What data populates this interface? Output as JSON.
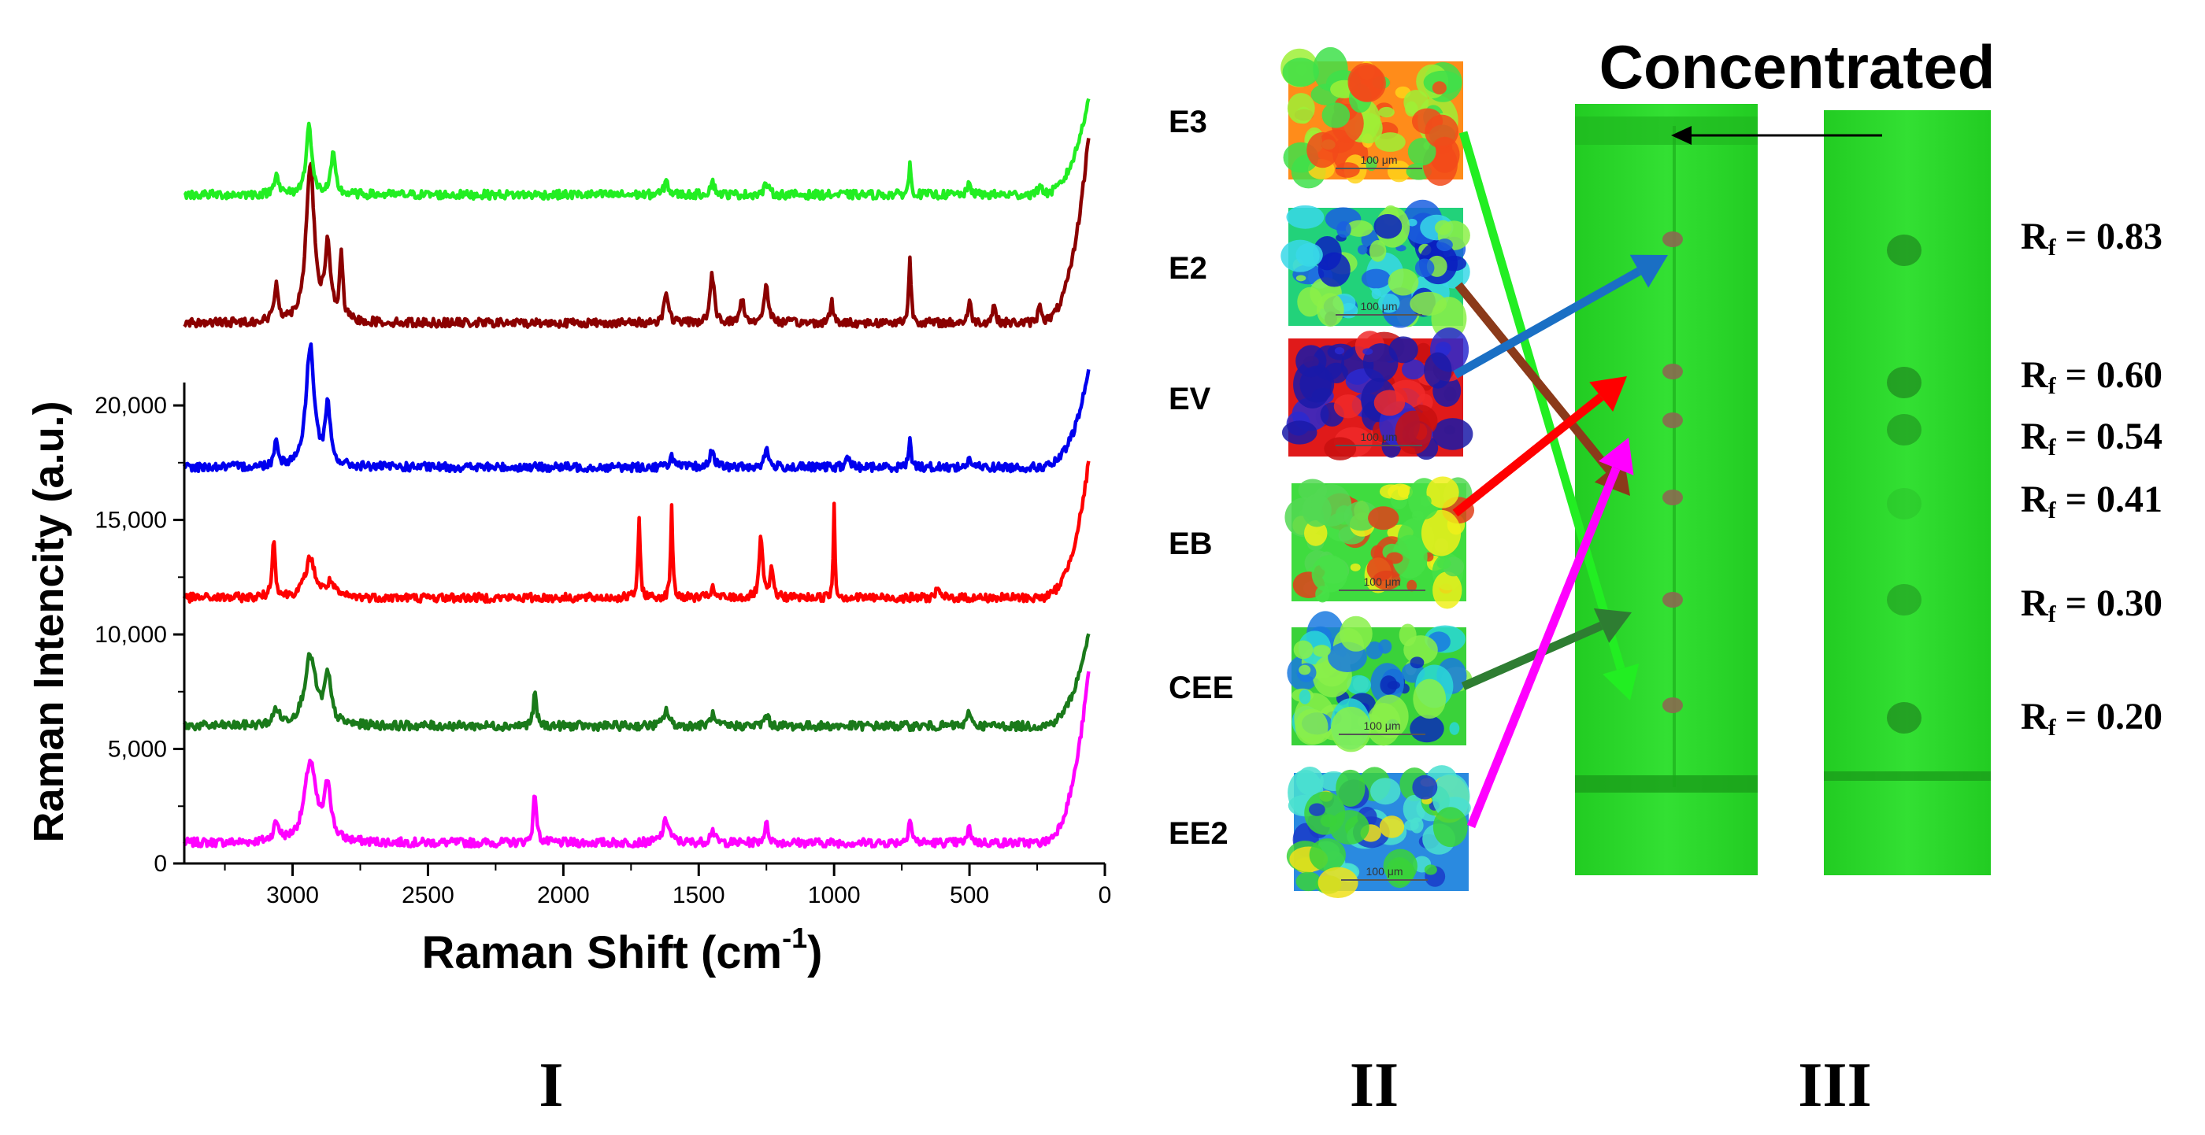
{
  "chart_data": {
    "type": "line",
    "panel_label": "I",
    "xlabel": "Raman Shift (cm",
    "xlabel_sup": "-1",
    "xlabel_close": ")",
    "ylabel": "Raman Intencity (a.u.)",
    "xlim": [
      3400,
      0
    ],
    "ylim": [
      0,
      21000
    ],
    "x_ticks": [
      3000,
      2500,
      2000,
      1500,
      1000,
      500,
      0
    ],
    "x_tick_labels": [
      "3000",
      "2500",
      "2000",
      "1500",
      "1000",
      "500",
      "0"
    ],
    "y_ticks": [
      0,
      5000,
      10000,
      15000,
      20000
    ],
    "y_tick_labels": [
      "0",
      "5,000",
      "10,000",
      "15,000",
      "20,000"
    ],
    "series": [
      {
        "name": "EE2",
        "color": "#ff00ff",
        "baseline": 900,
        "end_value": 8400,
        "peaks": [
          [
            3060,
            800,
            12
          ],
          [
            2935,
            3500,
            25
          ],
          [
            2870,
            2400,
            14
          ],
          [
            2105,
            2200,
            7
          ],
          [
            1620,
            1000,
            14
          ],
          [
            1450,
            600,
            9
          ],
          [
            1250,
            800,
            9
          ],
          [
            720,
            1100,
            7
          ],
          [
            500,
            700,
            7
          ]
        ]
      },
      {
        "name": "CEE",
        "color": "#1a7a1a",
        "baseline": 6000,
        "end_value": 10100,
        "peaks": [
          [
            3060,
            700,
            12
          ],
          [
            2935,
            3000,
            25
          ],
          [
            2870,
            2000,
            14
          ],
          [
            2105,
            1400,
            7
          ],
          [
            1620,
            700,
            11
          ],
          [
            1450,
            500,
            9
          ],
          [
            1250,
            500,
            9
          ],
          [
            500,
            700,
            7
          ]
        ]
      },
      {
        "name": "EB",
        "color": "#ff0000",
        "baseline": 11600,
        "end_value": 17500,
        "peaks": [
          [
            3070,
            2500,
            7
          ],
          [
            2935,
            1700,
            22
          ],
          [
            2860,
            600,
            16
          ],
          [
            1720,
            3300,
            5
          ],
          [
            1600,
            4200,
            4
          ],
          [
            1450,
            400,
            8
          ],
          [
            1270,
            2700,
            7
          ],
          [
            1230,
            1200,
            7
          ],
          [
            1000,
            4100,
            3.5
          ],
          [
            620,
            500,
            6
          ]
        ]
      },
      {
        "name": "EV",
        "color": "#0000ee",
        "baseline": 17300,
        "end_value": 21500,
        "peaks": [
          [
            3060,
            1200,
            8
          ],
          [
            2935,
            5300,
            18
          ],
          [
            2870,
            2500,
            11
          ],
          [
            1600,
            500,
            9
          ],
          [
            1450,
            800,
            9
          ],
          [
            1250,
            800,
            9
          ],
          [
            950,
            500,
            7
          ],
          [
            720,
            1400,
            5
          ],
          [
            500,
            400,
            7
          ]
        ]
      },
      {
        "name": "E2",
        "color": "#8b0000",
        "baseline": 23600,
        "end_value": 31800,
        "peaks": [
          [
            3060,
            1600,
            9
          ],
          [
            2935,
            6900,
            18
          ],
          [
            2870,
            3200,
            12
          ],
          [
            2820,
            2800,
            7
          ],
          [
            1620,
            1400,
            9
          ],
          [
            1450,
            2100,
            9
          ],
          [
            1340,
            1000,
            9
          ],
          [
            1250,
            1700,
            9
          ],
          [
            1010,
            1000,
            6
          ],
          [
            720,
            2900,
            5
          ],
          [
            500,
            900,
            7
          ],
          [
            410,
            900,
            6
          ],
          [
            240,
            900,
            7
          ]
        ]
      },
      {
        "name": "E3",
        "color": "#22ee22",
        "baseline": 29200,
        "end_value": 33500,
        "peaks": [
          [
            3060,
            1000,
            9
          ],
          [
            2940,
            3100,
            12
          ],
          [
            2850,
            1700,
            10
          ],
          [
            1620,
            600,
            9
          ],
          [
            1450,
            600,
            9
          ],
          [
            1250,
            500,
            9
          ],
          [
            720,
            1300,
            5
          ],
          [
            500,
            500,
            7
          ],
          [
            240,
            500,
            7
          ]
        ]
      }
    ]
  },
  "panel2": {
    "label": "II",
    "scale_text": "100 μm",
    "maps": [
      {
        "name": "E3",
        "arrow_color": "#22ee22"
      },
      {
        "name": "E2",
        "arrow_color": "#8b3a1a"
      },
      {
        "name": "EV",
        "arrow_color": "#1a6fc4"
      },
      {
        "name": "EB",
        "arrow_color": "#ff0000"
      },
      {
        "name": "CEE",
        "arrow_color": "#2e7d32"
      },
      {
        "name": "EE2",
        "arrow_color": "#ff00ff"
      }
    ]
  },
  "panel3": {
    "label": "III",
    "title": "Concentrated",
    "plate_color": "#2ede2e",
    "rf_values": [
      "0.83",
      "0.60",
      "0.54",
      "0.41",
      "0.30",
      "0.20"
    ],
    "rf_prefix": "R",
    "rf_sub": "f",
    "rf_eq": " = "
  }
}
